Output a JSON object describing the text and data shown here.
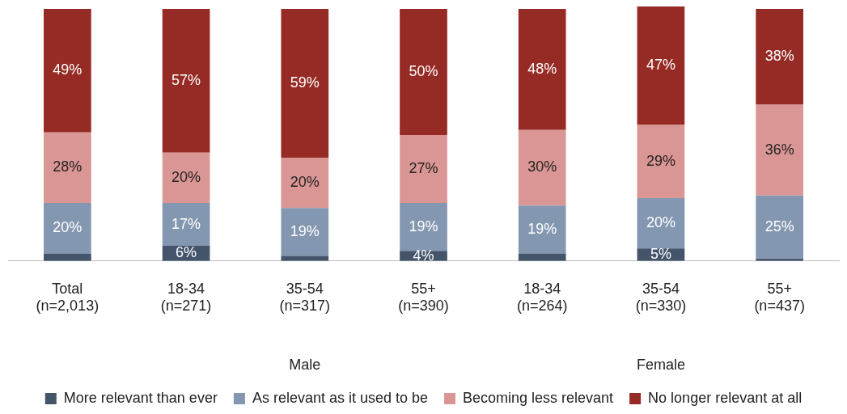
{
  "chart_data": {
    "type": "bar",
    "stacked": true,
    "grid": false,
    "legend": "bottom",
    "categories": [
      "Total\n(n=2,013)",
      "18-34\n(n=271)",
      "35-54\n(n=317)",
      "55+\n(n=390)",
      "18-34\n(n=264)",
      "35-54\n(n=330)",
      "55+\n(n=437)"
    ],
    "series": [
      {
        "name": "More relevant than ever",
        "color": "#44546a",
        "values": [
          3,
          6,
          2,
          4,
          3,
          5,
          1
        ],
        "value_labels": [
          null,
          "6%",
          null,
          "4%",
          null,
          "5%",
          null
        ]
      },
      {
        "name": "As relevant as it used to be",
        "color": "#8497b0",
        "values": [
          20,
          17,
          19,
          19,
          19,
          20,
          25
        ],
        "value_labels": [
          "20%",
          "17%",
          "19%",
          "19%",
          "19%",
          "20%",
          "25%"
        ]
      },
      {
        "name": "Becoming less relevant",
        "color": "#da9694",
        "values": [
          28,
          20,
          20,
          27,
          30,
          29,
          36
        ],
        "value_labels": [
          "28%",
          "20%",
          "20%",
          "27%",
          "30%",
          "29%",
          "36%"
        ]
      },
      {
        "name": "No longer relevant at all",
        "color": "#962a24",
        "values": [
          49,
          57,
          59,
          50,
          48,
          47,
          38
        ],
        "value_labels": [
          "49%",
          "57%",
          "59%",
          "50%",
          "48%",
          "47%",
          "38%"
        ]
      }
    ],
    "annotations": [
      "Male",
      "Female"
    ]
  }
}
